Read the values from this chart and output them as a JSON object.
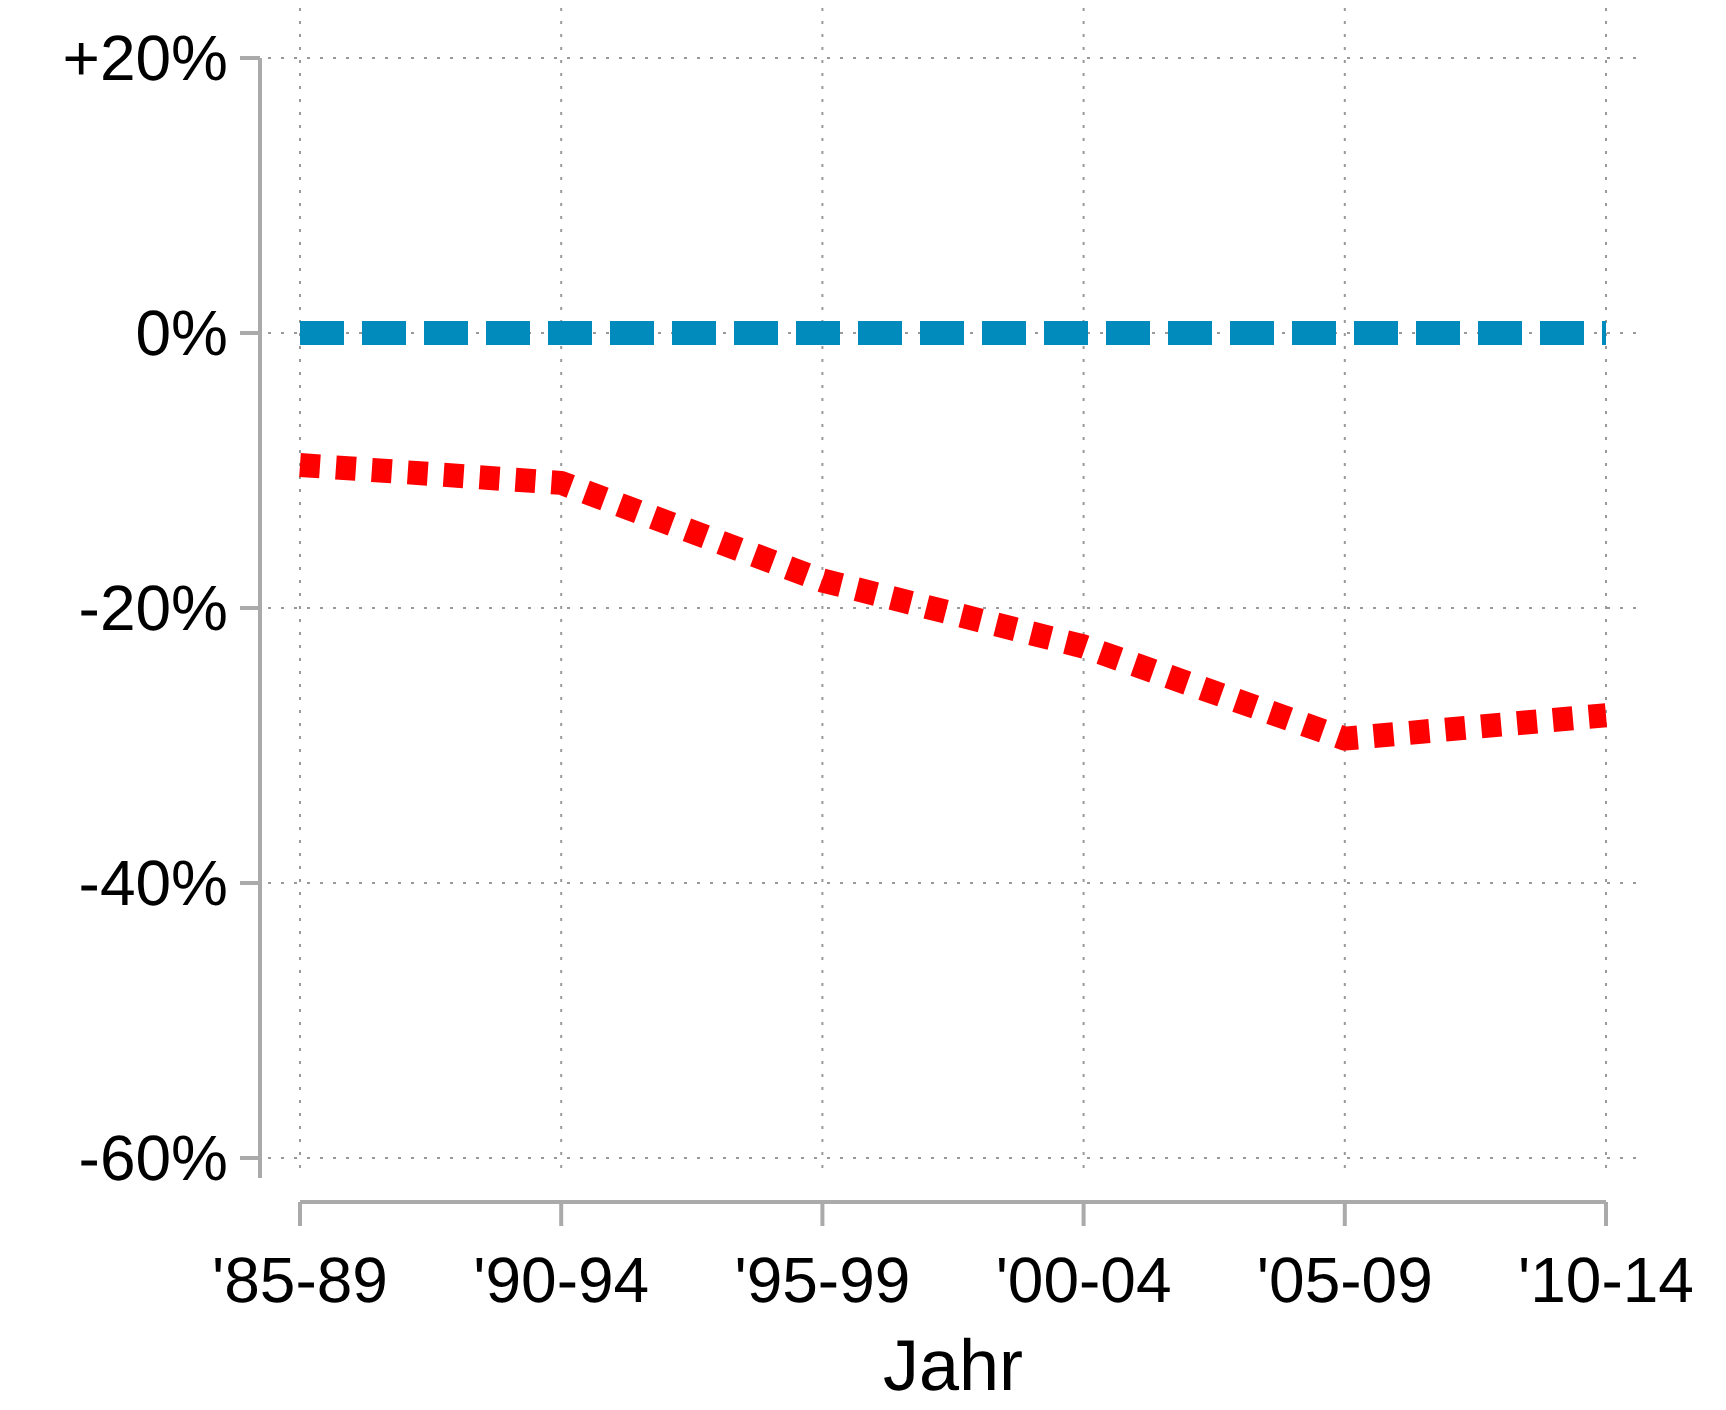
{
  "chart_data": {
    "type": "line",
    "xlabel": "Jahr",
    "categories": [
      "'85-89",
      "'90-94",
      "'95-99",
      "'00-04",
      "'05-09",
      "'10-14"
    ],
    "series": [
      {
        "color": "#008bbc",
        "line_style": "dashed",
        "values": [
          0,
          0,
          0,
          0,
          0,
          0
        ]
      },
      {
        "color": "#ff0000",
        "line_style": "dotted",
        "values": [
          -9.6,
          -10.9,
          -18,
          -22.8,
          -29.5,
          -27.8
        ]
      }
    ],
    "ylim": [
      -60,
      20
    ],
    "yticks": [
      {
        "value": 20,
        "label": "+20%"
      },
      {
        "value": 0,
        "label": "0%"
      },
      {
        "value": -20,
        "label": "-20%"
      },
      {
        "value": -40,
        "label": "-40%"
      },
      {
        "value": -60,
        "label": "-60%"
      }
    ],
    "grid": true,
    "marker": "none"
  }
}
